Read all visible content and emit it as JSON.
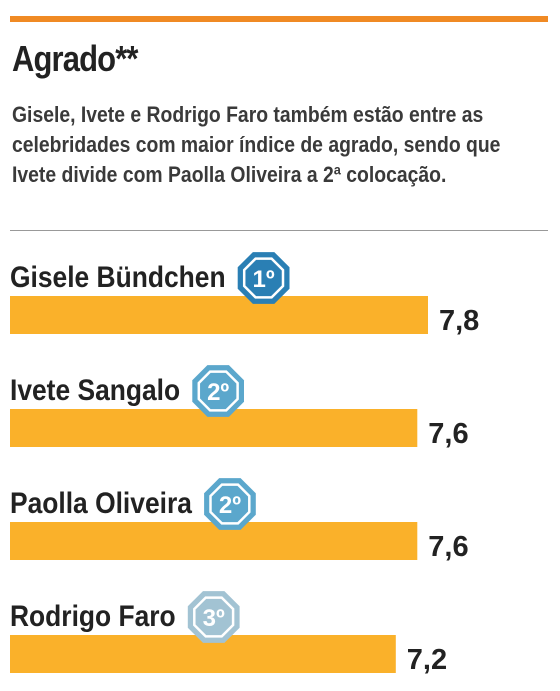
{
  "header": {
    "title": "Agrado**",
    "subtitle": "Gisele, Ivete e Rodrigo Faro também estão entre as celebridades com maior índice de agrado, sendo que Ivete divide com Paolla Oliveira a 2ª colocação."
  },
  "colors": {
    "accent_rule": "#f08a24",
    "bar": "#fab12a",
    "rank_1": "#2a7fb4",
    "rank_2": "#5ba7cc",
    "rank_3": "#a2c3d3"
  },
  "chart_data": {
    "type": "bar",
    "orientation": "horizontal",
    "title": "Agrado**",
    "categories": [
      "Gisele Bündchen",
      "Ivete Sangalo",
      "Paolla Oliveira",
      "Rodrigo Faro"
    ],
    "values": [
      7.8,
      7.6,
      7.6,
      7.2
    ],
    "value_labels": [
      "7,8",
      "7,6",
      "7,6",
      "7,2"
    ],
    "ranks": [
      "1º",
      "2º",
      "2º",
      "3º"
    ],
    "xlim": [
      0,
      7.8
    ],
    "grid": false,
    "legend": "none"
  }
}
